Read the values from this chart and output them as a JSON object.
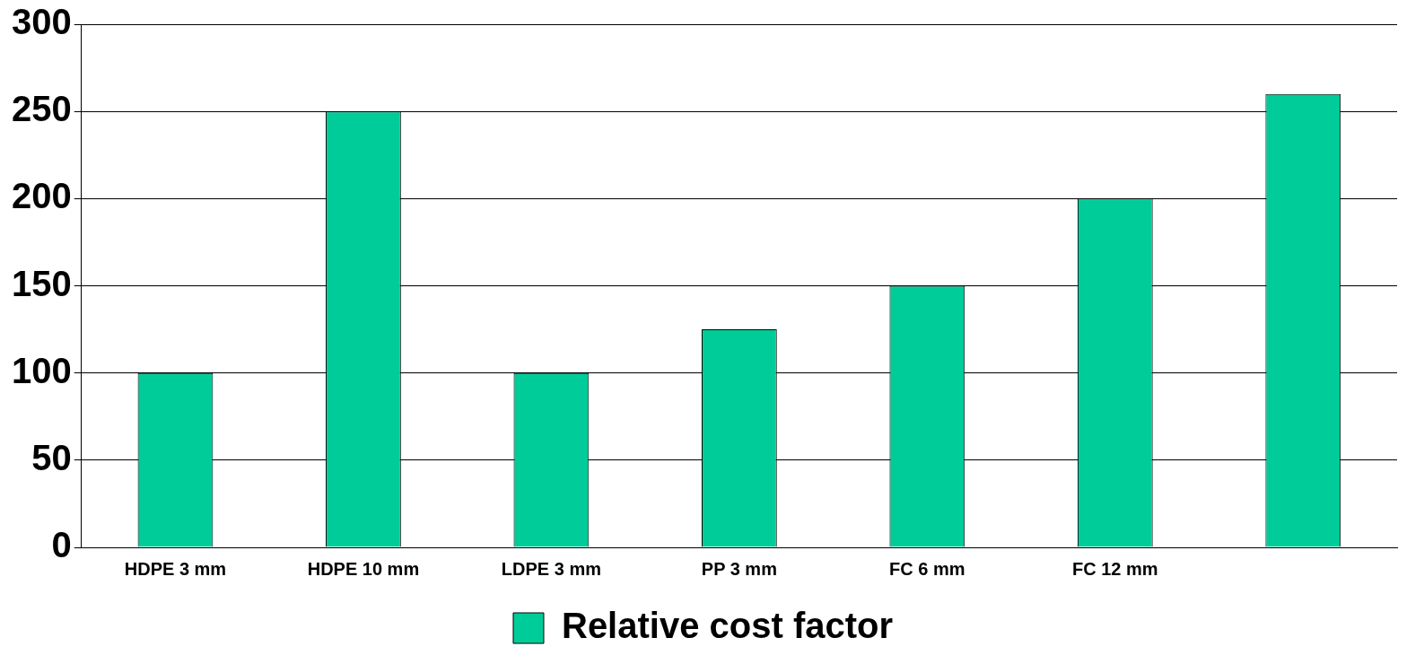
{
  "chart_data": {
    "type": "bar",
    "categories": [
      "HDPE 3 mm",
      "HDPE 10 mm",
      "LDPE 3 mm",
      "PP 3 mm",
      "FC 6 mm",
      "FC 12 mm",
      null
    ],
    "series": [
      {
        "name": "Relative cost factor",
        "color": "#00cc99",
        "values": [
          100,
          250,
          100,
          125,
          150,
          200,
          260
        ]
      }
    ],
    "ylim": [
      0,
      300
    ],
    "yticks": [
      0,
      50,
      100,
      150,
      200,
      250,
      300
    ],
    "grid": "y",
    "legend": "bottom"
  }
}
